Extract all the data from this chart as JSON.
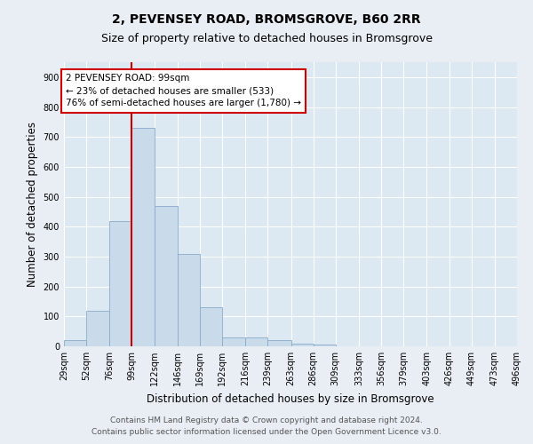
{
  "title_line1": "2, PEVENSEY ROAD, BROMSGROVE, B60 2RR",
  "title_line2": "Size of property relative to detached houses in Bromsgrove",
  "xlabel": "Distribution of detached houses by size in Bromsgrove",
  "ylabel": "Number of detached properties",
  "bin_edges": [
    29,
    52,
    76,
    99,
    122,
    146,
    169,
    192,
    216,
    239,
    263,
    286,
    309,
    333,
    356,
    379,
    403,
    426,
    449,
    473,
    496
  ],
  "bar_heights": [
    20,
    120,
    420,
    730,
    470,
    310,
    130,
    30,
    30,
    20,
    10,
    5,
    1,
    0,
    0,
    0,
    0,
    1,
    0,
    0
  ],
  "bar_color": "#c9daea",
  "bar_edge_color": "#8aaac8",
  "vline_x": 99,
  "vline_color": "#cc0000",
  "annotation_line1": "2 PEVENSEY ROAD: 99sqm",
  "annotation_line2": "← 23% of detached houses are smaller (533)",
  "annotation_line3": "76% of semi-detached houses are larger (1,780) →",
  "annotation_box_color": "#ffffff",
  "annotation_box_edge_color": "#cc0000",
  "ylim": [
    0,
    950
  ],
  "yticks": [
    0,
    100,
    200,
    300,
    400,
    500,
    600,
    700,
    800,
    900
  ],
  "background_color": "#e8eef4",
  "plot_bg_color": "#dce8f2",
  "footer_line1": "Contains HM Land Registry data © Crown copyright and database right 2024.",
  "footer_line2": "Contains public sector information licensed under the Open Government Licence v3.0.",
  "title_fontsize": 10,
  "subtitle_fontsize": 9,
  "axis_label_fontsize": 8.5,
  "tick_fontsize": 7,
  "annotation_fontsize": 7.5,
  "footer_fontsize": 6.5
}
